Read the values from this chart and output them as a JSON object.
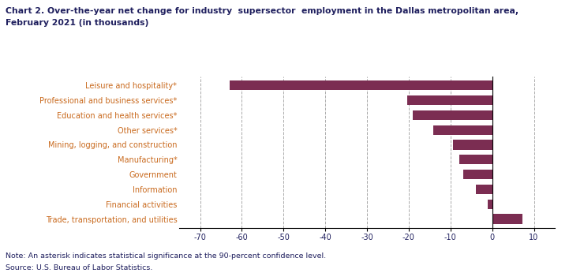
{
  "categories": [
    "Trade, transportation, and utilities",
    "Financial activities",
    "Information",
    "Government",
    "Manufacturing*",
    "Mining, logging, and construction",
    "Other services*",
    "Education and health services*",
    "Professional and business services*",
    "Leisure and hospitality*"
  ],
  "values": [
    7.2,
    -1.0,
    -4.0,
    -7.0,
    -7.8,
    -9.3,
    -14.2,
    -19.0,
    -20.3,
    -63.0
  ],
  "bar_color": "#7b2d52",
  "background_color": "#ffffff",
  "title_line1": "Chart 2. Over-the-year net change for industry  supersector  employment in the Dallas metropolitan area,",
  "title_line2": "February 2021 (in thousands)",
  "title_color": "#1f1f5e",
  "xlim": [
    -75,
    15
  ],
  "xticks": [
    -70,
    -60,
    -50,
    -40,
    -30,
    -20,
    -10,
    0,
    10
  ],
  "note_line1": "Note: An asterisk indicates statistical significance at the 90-percent confidence level.",
  "note_line2": "Source: U.S. Bureau of Labor Statistics.",
  "note_color": "#1f1f5e",
  "grid_color": "#aaaaaa",
  "ylabel_color": "#c96a1e",
  "xlabel_color": "#1f1f5e"
}
